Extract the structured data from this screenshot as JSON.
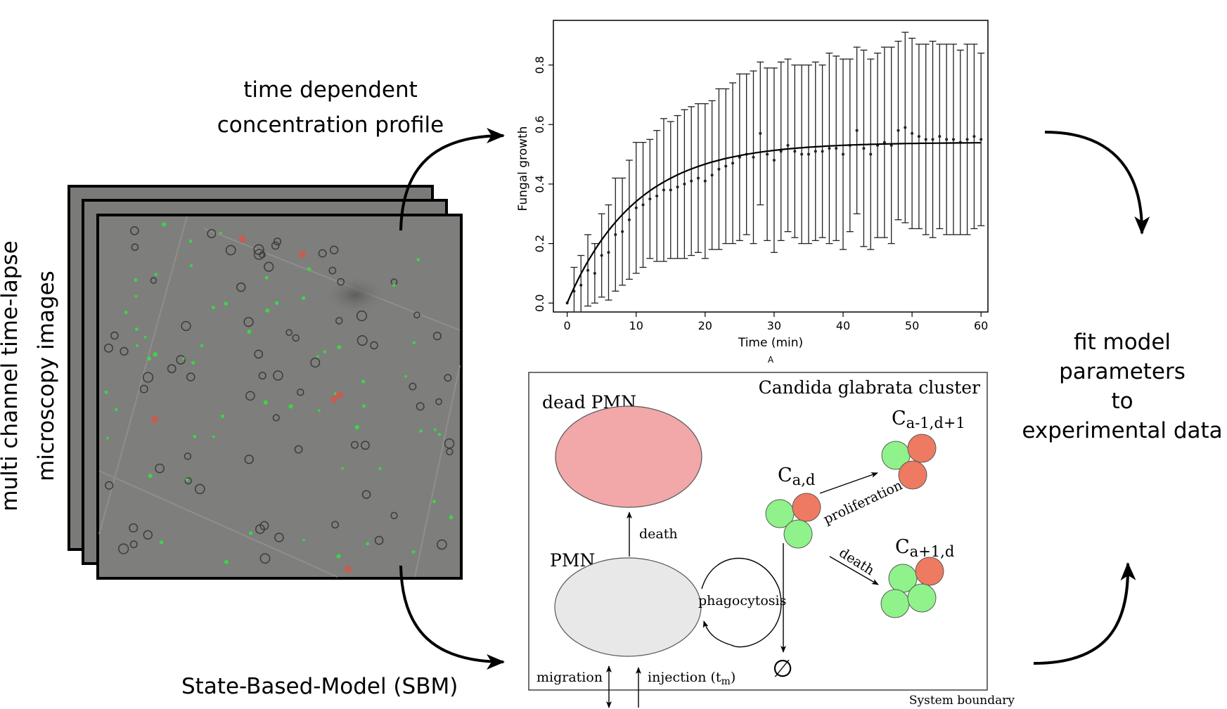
{
  "labels": {
    "left_vertical_1": "multi channel time-lapse",
    "left_vertical_2": "microscopy images",
    "top_label_1": "time dependent",
    "top_label_2": "concentration profile",
    "bottom_label": "State-Based-Model (SBM)",
    "right_label": [
      "fit model",
      "parameters",
      "to",
      "experimental data"
    ]
  },
  "chart_data": {
    "type": "line",
    "xlabel": "Time (min)",
    "ylabel": "Fungal growth",
    "caption": "A",
    "xlim": [
      -2,
      61
    ],
    "ylim": [
      -0.03,
      0.95
    ],
    "xticks": [
      0,
      10,
      20,
      30,
      40,
      50,
      60
    ],
    "yticks": [
      0.0,
      0.2,
      0.4,
      0.6,
      0.8
    ],
    "ytick_labels": [
      "0.0",
      "0.2",
      "0.4",
      "0.6",
      "0.8"
    ],
    "grid": false,
    "series": [
      {
        "kind": "points_with_error_bars",
        "x": [
          0,
          1,
          2,
          3,
          4,
          5,
          6,
          7,
          8,
          9,
          10,
          11,
          12,
          13,
          14,
          15,
          16,
          17,
          18,
          19,
          20,
          21,
          22,
          23,
          24,
          25,
          26,
          27,
          28,
          29,
          30,
          31,
          32,
          33,
          34,
          35,
          36,
          37,
          38,
          39,
          40,
          41,
          42,
          43,
          44,
          45,
          46,
          47,
          48,
          49,
          50,
          51,
          52,
          53,
          54,
          55,
          56,
          57,
          58,
          59,
          60
        ],
        "y": [
          0.0,
          0.04,
          0.06,
          0.11,
          0.1,
          0.16,
          0.17,
          0.23,
          0.24,
          0.28,
          0.32,
          0.33,
          0.35,
          0.36,
          0.38,
          0.38,
          0.39,
          0.4,
          0.41,
          0.42,
          0.41,
          0.43,
          0.45,
          0.46,
          0.47,
          0.49,
          0.5,
          0.49,
          0.57,
          0.5,
          0.48,
          0.51,
          0.53,
          0.51,
          0.5,
          0.5,
          0.51,
          0.51,
          0.52,
          0.52,
          0.5,
          0.53,
          0.58,
          0.52,
          0.5,
          0.53,
          0.54,
          0.53,
          0.58,
          0.59,
          0.57,
          0.56,
          0.55,
          0.55,
          0.56,
          0.55,
          0.55,
          0.54,
          0.55,
          0.56,
          0.55
        ],
        "err": [
          0.0,
          0.08,
          0.1,
          0.12,
          0.1,
          0.14,
          0.16,
          0.19,
          0.18,
          0.2,
          0.22,
          0.21,
          0.2,
          0.22,
          0.24,
          0.23,
          0.24,
          0.25,
          0.25,
          0.25,
          0.26,
          0.25,
          0.27,
          0.26,
          0.27,
          0.28,
          0.27,
          0.29,
          0.24,
          0.29,
          0.31,
          0.3,
          0.29,
          0.29,
          0.3,
          0.3,
          0.3,
          0.29,
          0.32,
          0.31,
          0.32,
          0.29,
          0.28,
          0.33,
          0.32,
          0.31,
          0.32,
          0.33,
          0.3,
          0.32,
          0.32,
          0.31,
          0.32,
          0.33,
          0.31,
          0.32,
          0.32,
          0.31,
          0.32,
          0.31,
          0.29
        ]
      },
      {
        "kind": "fit_curve",
        "model": "0.54*(1-exp(-t/10))"
      }
    ]
  },
  "sbm": {
    "title": "Candida glabrata cluster",
    "dead_pmn": "dead PMN",
    "pmn": "PMN",
    "death": "death",
    "phagocytosis": "phagocytosis",
    "migration": "migration",
    "injection": "injection (t",
    "injection_sub": "m",
    "injection_close": ")",
    "c_center": "C",
    "c_center_sub": "a,d",
    "c_top": "C",
    "c_top_sub": "a-1,d+1",
    "c_bottom": "C",
    "c_bottom_sub": "a+1,d",
    "proliferation": "proliferation",
    "cluster_death": "death",
    "empty_set": "∅",
    "system_boundary": "System boundary"
  },
  "colors": {
    "green_cell": "#90f28a",
    "red_cell": "#ee7a62",
    "dead_pmn_fill": "#f2a7a8",
    "pmn_fill": "#e8e8e8",
    "microscopy_bg": "#7d7d7b"
  }
}
